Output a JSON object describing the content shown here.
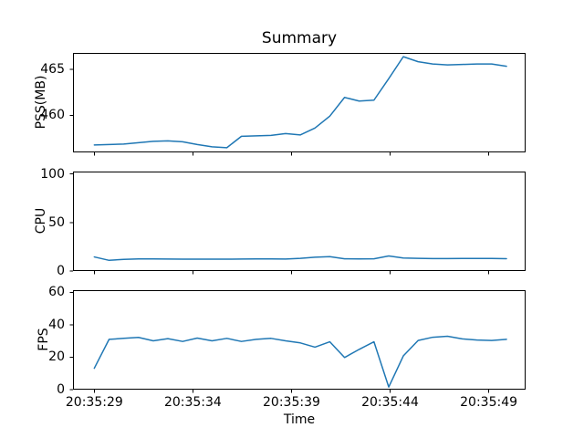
{
  "figure": {
    "title": "Summary",
    "xlabel": "Time",
    "line_color": "#1f77b4",
    "axes_color": "#000000",
    "text_color": "#000000",
    "background": "#ffffff"
  },
  "chart_data": [
    {
      "type": "line",
      "name": "pss",
      "ylabel": "PSS(MB)",
      "x_unit": "seconds after 20:35:29",
      "x": [
        0,
        0.75,
        1.49,
        2.24,
        2.99,
        3.73,
        4.48,
        5.22,
        5.97,
        6.72,
        7.46,
        8.21,
        8.96,
        9.7,
        10.45,
        11.19,
        11.94,
        12.69,
        13.43,
        14.18,
        14.93,
        15.67,
        16.42,
        17.16,
        17.91,
        18.66,
        19.4,
        20.15,
        20.9
      ],
      "values": [
        456.75,
        456.8,
        456.85,
        457.0,
        457.15,
        457.2,
        457.1,
        456.8,
        456.55,
        456.45,
        457.7,
        457.75,
        457.8,
        458.0,
        457.85,
        458.6,
        459.9,
        461.95,
        461.55,
        461.65,
        464.0,
        466.4,
        465.85,
        465.6,
        465.5,
        465.55,
        465.6,
        465.6,
        465.35
      ],
      "ylim": [
        455.94,
        466.81
      ],
      "yticks": [
        460,
        465
      ],
      "ytick_labels": [
        "460",
        "465"
      ],
      "xlim": [
        -1.08,
        21.87
      ],
      "xticks": [
        0,
        5,
        10,
        15,
        20
      ],
      "grid": false
    },
    {
      "type": "line",
      "name": "cpu",
      "ylabel": "CPU",
      "x_unit": "seconds after 20:35:29",
      "x": [
        0,
        0.75,
        1.49,
        2.24,
        2.99,
        3.73,
        4.48,
        5.22,
        5.97,
        6.72,
        7.46,
        8.21,
        8.96,
        9.7,
        10.45,
        11.19,
        11.94,
        12.69,
        13.43,
        14.18,
        14.93,
        15.67,
        16.42,
        17.16,
        17.91,
        18.66,
        19.4,
        20.15,
        20.9
      ],
      "values": [
        14.5,
        11.0,
        12.0,
        12.5,
        12.5,
        12.3,
        12.2,
        12.2,
        12.2,
        12.2,
        12.3,
        12.5,
        12.4,
        12.3,
        13.0,
        14.2,
        14.8,
        12.6,
        12.4,
        12.6,
        15.5,
        13.4,
        13.0,
        12.8,
        12.8,
        12.9,
        12.9,
        12.9,
        12.7
      ],
      "ylim": [
        0,
        102.5
      ],
      "yticks": [
        0,
        50,
        100
      ],
      "ytick_labels": [
        "0",
        "50",
        "100"
      ],
      "xlim": [
        -1.08,
        21.87
      ],
      "xticks": [
        0,
        5,
        10,
        15,
        20
      ],
      "grid": false
    },
    {
      "type": "line",
      "name": "fps",
      "ylabel": "FPS",
      "xlabel": "Time",
      "x_unit": "seconds after 20:35:29",
      "x": [
        0,
        0.75,
        1.49,
        2.24,
        2.99,
        3.73,
        4.48,
        5.22,
        5.97,
        6.72,
        7.46,
        8.21,
        8.96,
        9.7,
        10.45,
        11.19,
        11.94,
        12.69,
        13.43,
        14.18,
        14.93,
        15.67,
        16.42,
        17.16,
        17.91,
        18.66,
        19.4,
        20.15,
        20.9
      ],
      "values": [
        13.2,
        31.0,
        31.6,
        32.2,
        30.1,
        31.4,
        29.7,
        31.8,
        30.1,
        31.6,
        29.7,
        31.0,
        31.6,
        30.1,
        28.8,
        26.2,
        29.5,
        19.8,
        24.8,
        29.5,
        1.6,
        20.8,
        30.3,
        32.3,
        32.9,
        31.3,
        30.6,
        30.3,
        31.0
      ],
      "ylim": [
        0,
        61.3
      ],
      "yticks": [
        0,
        20,
        40,
        60
      ],
      "ytick_labels": [
        "0",
        "20",
        "40",
        "60"
      ],
      "xlim": [
        -1.08,
        21.87
      ],
      "xticks": [
        0,
        5,
        10,
        15,
        20
      ],
      "xtick_labels": [
        "20:35:29",
        "20:35:34",
        "20:35:39",
        "20:35:44",
        "20:35:49"
      ]
    }
  ]
}
